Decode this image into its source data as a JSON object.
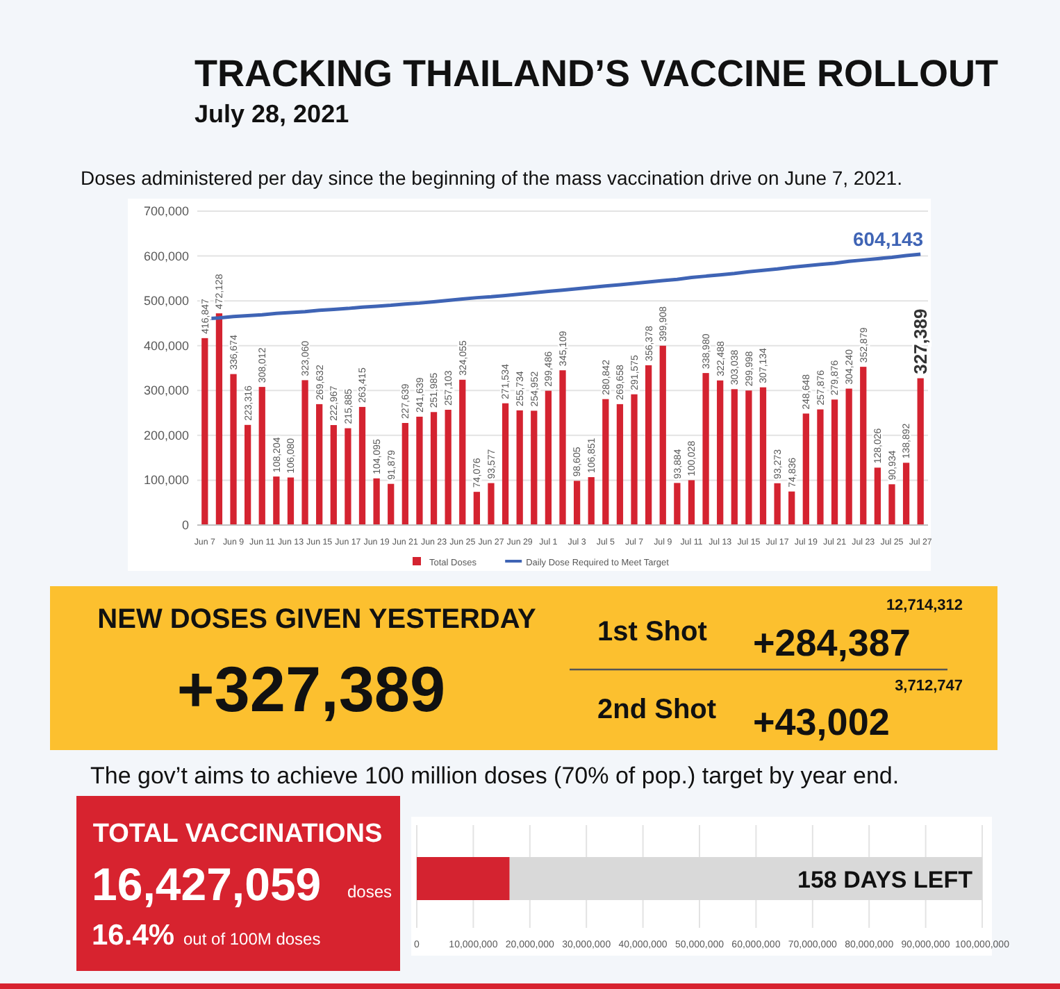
{
  "chart_data": [
    {
      "type": "bar",
      "title": "TRACKING THAILAND’S VACCINE ROLLOUT",
      "subtitle": "July 28, 2021",
      "annotations": [
        "Doses administered per day since the beginning of the mass vaccination drive on June 7, 2021."
      ],
      "categories": [
        "Jun 7",
        null,
        "Jun 9",
        null,
        "Jun 11",
        null,
        "Jun 13",
        null,
        "Jun 15",
        null,
        "Jun 17",
        null,
        "Jun 19",
        null,
        "Jun 21",
        null,
        "Jun 23",
        null,
        "Jun 25",
        null,
        "Jun 27",
        null,
        "Jun 29",
        null,
        "Jul 1",
        null,
        "Jul 3",
        null,
        "Jul 5",
        null,
        "Jul 7",
        null,
        "Jul 9",
        null,
        "Jul 11",
        null,
        "Jul 13",
        null,
        "Jul 15",
        null,
        "Jul 17",
        null,
        "Jul 19",
        null,
        "Jul 21",
        null,
        "Jul 23",
        null,
        "Jul 25",
        null,
        "Jul 27"
      ],
      "series": [
        {
          "name": "Total Doses",
          "type": "bar",
          "color": "#d42330",
          "values": [
            416847,
            472128,
            336674,
            223316,
            308012,
            108204,
            106080,
            323060,
            269632,
            222967,
            215885,
            263415,
            104095,
            91879,
            227639,
            241639,
            251985,
            257103,
            324055,
            74076,
            93577,
            271534,
            255734,
            254952,
            299486,
            345109,
            98605,
            106851,
            280842,
            269658,
            291575,
            356378,
            399908,
            93884,
            100028,
            338980,
            322488,
            303038,
            299998,
            307134,
            93273,
            74836,
            248648,
            257876,
            279876,
            304240,
            352879,
            128026,
            90934,
            138892,
            327389
          ],
          "value_labels": [
            "416,847",
            "472,128",
            "336,674",
            "223,316",
            "308,012",
            "108,204",
            "106,080",
            "323,060",
            "269,632",
            "222,967",
            "215,885",
            "263,415",
            "104,095",
            "91,879",
            "227,639",
            "241,639",
            "251,985",
            "257,103",
            "324,055",
            "74,076",
            "93,577",
            "271,534",
            "255,734",
            "254,952",
            "299,486",
            "345,109",
            "98,605",
            "106,851",
            "280,842",
            "269,658",
            "291,575",
            "356,378",
            "399,908",
            "93,884",
            "100,028",
            "338,980",
            "322,488",
            "303,038",
            "299,998",
            "307,134",
            "93,273",
            "74,836",
            "248,648",
            "257,876",
            "279,876",
            "304,240",
            "352,879",
            "128,026",
            "90,934",
            "138,892",
            "327,389"
          ]
        },
        {
          "name": "Daily Dose Required to Meet Target",
          "type": "line",
          "color": "#3f64b5",
          "values": [
            460000,
            462000,
            465000,
            467000,
            469000,
            472000,
            474000,
            476000,
            479000,
            481000,
            483000,
            486000,
            488000,
            490000,
            493000,
            495000,
            498000,
            501000,
            504000,
            507000,
            509000,
            512000,
            515000,
            518000,
            521000,
            524000,
            527000,
            530000,
            533000,
            536000,
            539000,
            542000,
            545000,
            548000,
            552000,
            555000,
            558000,
            561000,
            565000,
            568000,
            571000,
            575000,
            578000,
            581000,
            584000,
            588000,
            591000,
            594000,
            597000,
            601000,
            604143
          ],
          "value_labels": [
            null,
            null,
            null,
            null,
            null,
            null,
            null,
            null,
            null,
            null,
            null,
            null,
            null,
            null,
            null,
            null,
            null,
            null,
            null,
            null,
            null,
            null,
            null,
            null,
            null,
            null,
            null,
            null,
            null,
            null,
            null,
            null,
            null,
            null,
            null,
            null,
            null,
            null,
            null,
            null,
            null,
            null,
            null,
            null,
            null,
            null,
            null,
            null,
            null,
            null,
            "604,143"
          ]
        }
      ],
      "ylim": [
        0,
        700000
      ],
      "yticks": [
        0,
        {
          "value": 100000,
          "label": "100,000"
        },
        {
          "value": 200000,
          "label": "200,000"
        },
        {
          "value": 300000,
          "label": "300,000"
        },
        {
          "value": 400000,
          "label": "400,000"
        },
        {
          "value": 500000,
          "label": "500,000"
        },
        {
          "value": 600000,
          "label": "600,000"
        },
        {
          "value": 700000,
          "label": "700,000"
        }
      ],
      "grid": "y",
      "legend": "bottom"
    },
    {
      "type": "other",
      "title": "NEW DOSES GIVEN YESTERDAY",
      "annotations": [
        "+327,389",
        "1st Shot",
        "12,714,312",
        "+284,387",
        "2nd Shot",
        "3,712,747",
        "+43,002"
      ]
    },
    {
      "type": "other",
      "title": "TOTAL VACCINATIONS",
      "annotations": [
        "16,427,059",
        "doses",
        "16.4%",
        "out of 100M doses"
      ]
    },
    {
      "type": "bar",
      "orientation": "horizontal",
      "stacked": true,
      "title": "The gov’t aims to achieve 100 million doses (70% of pop.) target by year end.",
      "annotations": [
        "158 DAYS LEFT"
      ],
      "categories": [
        null
      ],
      "series": [
        {
          "color": "#d42330",
          "values": [
            16427059
          ]
        },
        {
          "color": "#d9d9d9",
          "values": [
            83572941
          ]
        }
      ],
      "xlim": [
        0,
        100000000
      ],
      "xticks": [
        0,
        {
          "value": 10000000,
          "label": "10,000,000"
        },
        {
          "value": 20000000,
          "label": "20,000,000"
        },
        {
          "value": 30000000,
          "label": "30,000,000"
        },
        {
          "value": 40000000,
          "label": "40,000,000"
        },
        {
          "value": 50000000,
          "label": "50,000,000"
        },
        {
          "value": 60000000,
          "label": "60,000,000"
        },
        {
          "value": 70000000,
          "label": "70,000,000"
        },
        {
          "value": 80000000,
          "label": "80,000,000"
        },
        {
          "value": 90000000,
          "label": "90,000,000"
        },
        {
          "value": 100000000,
          "label": "100,000,000"
        }
      ],
      "grid": "x"
    }
  ]
}
